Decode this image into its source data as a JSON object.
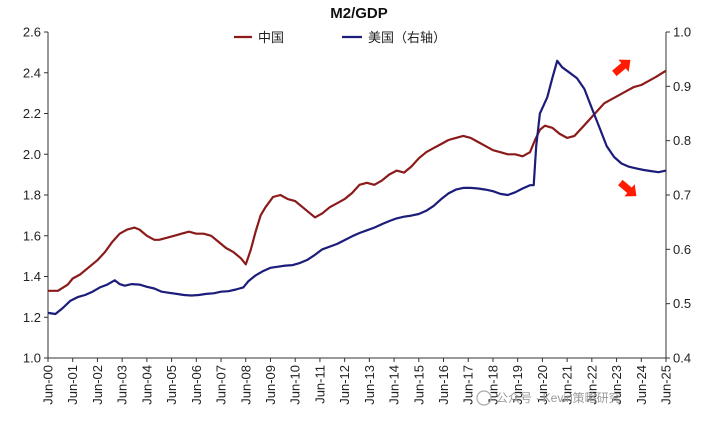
{
  "chart_data": {
    "type": "line",
    "title": "M2/GDP",
    "xlabel": "",
    "ylabel": "",
    "y_left_lim": [
      1.0,
      2.6
    ],
    "y_left_ticks": [
      "1.0",
      "1.2",
      "1.4",
      "1.6",
      "1.8",
      "2.0",
      "2.2",
      "2.4",
      "2.6"
    ],
    "y_right_lim": [
      0.4,
      1.0
    ],
    "y_right_ticks": [
      "0.4",
      "0.5",
      "0.6",
      "0.7",
      "0.8",
      "0.9",
      "1.0"
    ],
    "x_range": [
      2000.5,
      2025.5
    ],
    "x_tick_labels": [
      "Jun-00",
      "Jun-01",
      "Jun-02",
      "Jun-03",
      "Jun-04",
      "Jun-05",
      "Jun-06",
      "Jun-07",
      "Jun-08",
      "Jun-09",
      "Jun-10",
      "Jun-11",
      "Jun-12",
      "Jun-13",
      "Jun-14",
      "Jun-15",
      "Jun-16",
      "Jun-17",
      "Jun-18",
      "Jun-19",
      "Jun-20",
      "Jun-21",
      "Jun-22",
      "Jun-23",
      "Jun-24",
      "Jun-25"
    ],
    "legend_position": "top-center",
    "grid": false,
    "series": [
      {
        "name": "中国",
        "axis": "left",
        "color": "#8B1A1A",
        "points": [
          [
            2000.5,
            1.33
          ],
          [
            2000.9,
            1.33
          ],
          [
            2001.3,
            1.36
          ],
          [
            2001.5,
            1.39
          ],
          [
            2001.8,
            1.41
          ],
          [
            2002.2,
            1.45
          ],
          [
            2002.5,
            1.48
          ],
          [
            2002.8,
            1.52
          ],
          [
            2003.1,
            1.57
          ],
          [
            2003.4,
            1.61
          ],
          [
            2003.7,
            1.63
          ],
          [
            2004.0,
            1.64
          ],
          [
            2004.2,
            1.63
          ],
          [
            2004.5,
            1.6
          ],
          [
            2004.8,
            1.58
          ],
          [
            2005.0,
            1.58
          ],
          [
            2005.3,
            1.59
          ],
          [
            2005.6,
            1.6
          ],
          [
            2005.9,
            1.61
          ],
          [
            2006.2,
            1.62
          ],
          [
            2006.5,
            1.61
          ],
          [
            2006.8,
            1.61
          ],
          [
            2007.1,
            1.6
          ],
          [
            2007.4,
            1.57
          ],
          [
            2007.7,
            1.54
          ],
          [
            2008.0,
            1.52
          ],
          [
            2008.3,
            1.49
          ],
          [
            2008.5,
            1.46
          ],
          [
            2008.7,
            1.53
          ],
          [
            2008.9,
            1.62
          ],
          [
            2009.1,
            1.7
          ],
          [
            2009.3,
            1.74
          ],
          [
            2009.6,
            1.79
          ],
          [
            2009.9,
            1.8
          ],
          [
            2010.2,
            1.78
          ],
          [
            2010.5,
            1.77
          ],
          [
            2010.8,
            1.74
          ],
          [
            2011.1,
            1.71
          ],
          [
            2011.3,
            1.69
          ],
          [
            2011.6,
            1.71
          ],
          [
            2011.9,
            1.74
          ],
          [
            2012.2,
            1.76
          ],
          [
            2012.5,
            1.78
          ],
          [
            2012.8,
            1.81
          ],
          [
            2013.1,
            1.85
          ],
          [
            2013.4,
            1.86
          ],
          [
            2013.7,
            1.85
          ],
          [
            2014.0,
            1.87
          ],
          [
            2014.3,
            1.9
          ],
          [
            2014.6,
            1.92
          ],
          [
            2014.9,
            1.91
          ],
          [
            2015.2,
            1.94
          ],
          [
            2015.5,
            1.98
          ],
          [
            2015.8,
            2.01
          ],
          [
            2016.1,
            2.03
          ],
          [
            2016.4,
            2.05
          ],
          [
            2016.7,
            2.07
          ],
          [
            2017.0,
            2.08
          ],
          [
            2017.3,
            2.09
          ],
          [
            2017.6,
            2.08
          ],
          [
            2017.9,
            2.06
          ],
          [
            2018.2,
            2.04
          ],
          [
            2018.5,
            2.02
          ],
          [
            2018.8,
            2.01
          ],
          [
            2019.1,
            2.0
          ],
          [
            2019.4,
            2.0
          ],
          [
            2019.7,
            1.99
          ],
          [
            2020.0,
            2.01
          ],
          [
            2020.2,
            2.07
          ],
          [
            2020.4,
            2.12
          ],
          [
            2020.6,
            2.14
          ],
          [
            2020.9,
            2.13
          ],
          [
            2021.2,
            2.1
          ],
          [
            2021.5,
            2.08
          ],
          [
            2021.8,
            2.09
          ],
          [
            2022.1,
            2.13
          ],
          [
            2022.4,
            2.17
          ],
          [
            2022.7,
            2.21
          ],
          [
            2023.0,
            2.25
          ],
          [
            2023.3,
            2.27
          ],
          [
            2023.6,
            2.29
          ],
          [
            2023.9,
            2.31
          ],
          [
            2024.2,
            2.33
          ],
          [
            2024.5,
            2.34
          ],
          [
            2024.8,
            2.36
          ],
          [
            2025.1,
            2.38
          ],
          [
            2025.5,
            2.41
          ]
        ]
      },
      {
        "name": "美国（右轴）",
        "axis": "right",
        "color": "#1C1C7A",
        "points": [
          [
            2000.5,
            0.483
          ],
          [
            2000.8,
            0.481
          ],
          [
            2001.1,
            0.492
          ],
          [
            2001.4,
            0.505
          ],
          [
            2001.7,
            0.512
          ],
          [
            2002.0,
            0.516
          ],
          [
            2002.3,
            0.522
          ],
          [
            2002.6,
            0.53
          ],
          [
            2002.9,
            0.535
          ],
          [
            2003.2,
            0.543
          ],
          [
            2003.4,
            0.536
          ],
          [
            2003.6,
            0.533
          ],
          [
            2003.9,
            0.536
          ],
          [
            2004.2,
            0.535
          ],
          [
            2004.5,
            0.531
          ],
          [
            2004.8,
            0.528
          ],
          [
            2005.1,
            0.522
          ],
          [
            2005.4,
            0.52
          ],
          [
            2005.7,
            0.518
          ],
          [
            2006.0,
            0.516
          ],
          [
            2006.3,
            0.515
          ],
          [
            2006.6,
            0.516
          ],
          [
            2006.9,
            0.518
          ],
          [
            2007.2,
            0.519
          ],
          [
            2007.5,
            0.522
          ],
          [
            2007.8,
            0.523
          ],
          [
            2008.1,
            0.526
          ],
          [
            2008.4,
            0.53
          ],
          [
            2008.6,
            0.541
          ],
          [
            2008.9,
            0.552
          ],
          [
            2009.2,
            0.56
          ],
          [
            2009.5,
            0.566
          ],
          [
            2009.8,
            0.568
          ],
          [
            2010.1,
            0.57
          ],
          [
            2010.4,
            0.571
          ],
          [
            2010.7,
            0.575
          ],
          [
            2011.0,
            0.581
          ],
          [
            2011.3,
            0.59
          ],
          [
            2011.6,
            0.6
          ],
          [
            2011.9,
            0.605
          ],
          [
            2012.2,
            0.61
          ],
          [
            2012.5,
            0.617
          ],
          [
            2012.8,
            0.624
          ],
          [
            2013.1,
            0.63
          ],
          [
            2013.4,
            0.635
          ],
          [
            2013.7,
            0.64
          ],
          [
            2014.0,
            0.646
          ],
          [
            2014.3,
            0.652
          ],
          [
            2014.6,
            0.657
          ],
          [
            2014.9,
            0.66
          ],
          [
            2015.2,
            0.662
          ],
          [
            2015.5,
            0.665
          ],
          [
            2015.8,
            0.671
          ],
          [
            2016.1,
            0.68
          ],
          [
            2016.4,
            0.692
          ],
          [
            2016.7,
            0.703
          ],
          [
            2017.0,
            0.71
          ],
          [
            2017.3,
            0.713
          ],
          [
            2017.6,
            0.713
          ],
          [
            2017.9,
            0.712
          ],
          [
            2018.2,
            0.71
          ],
          [
            2018.5,
            0.707
          ],
          [
            2018.8,
            0.702
          ],
          [
            2019.1,
            0.7
          ],
          [
            2019.4,
            0.705
          ],
          [
            2019.7,
            0.712
          ],
          [
            2020.0,
            0.718
          ],
          [
            2020.15,
            0.718
          ],
          [
            2020.25,
            0.79
          ],
          [
            2020.4,
            0.85
          ],
          [
            2020.7,
            0.88
          ],
          [
            2020.9,
            0.915
          ],
          [
            2021.1,
            0.947
          ],
          [
            2021.3,
            0.935
          ],
          [
            2021.6,
            0.925
          ],
          [
            2021.9,
            0.915
          ],
          [
            2022.2,
            0.895
          ],
          [
            2022.5,
            0.86
          ],
          [
            2022.8,
            0.825
          ],
          [
            2023.1,
            0.79
          ],
          [
            2023.4,
            0.77
          ],
          [
            2023.7,
            0.758
          ],
          [
            2024.0,
            0.752
          ],
          [
            2024.3,
            0.749
          ],
          [
            2024.6,
            0.746
          ],
          [
            2024.9,
            0.744
          ],
          [
            2025.2,
            0.742
          ],
          [
            2025.5,
            0.745
          ]
        ]
      }
    ],
    "annotations": [
      {
        "type": "arrow",
        "direction": "up-right",
        "color": "#FF1A00",
        "near_series": "中国"
      },
      {
        "type": "arrow",
        "direction": "down-right",
        "color": "#FF1A00",
        "near_series": "美国（右轴）"
      }
    ]
  },
  "watermark": {
    "text": "公众号 · Kevin策略研究"
  }
}
